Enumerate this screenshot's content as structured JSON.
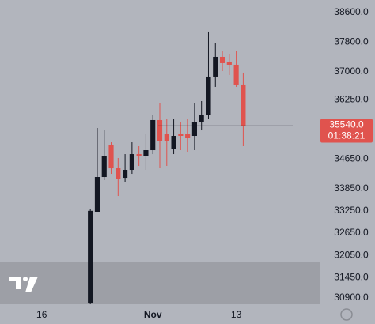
{
  "chart_data": {
    "type": "candlestick",
    "x": [
      0,
      1,
      2,
      3,
      4,
      5,
      6,
      7,
      8,
      9,
      10,
      11,
      12,
      13,
      14,
      15,
      16,
      17,
      18,
      19,
      20,
      21,
      22
    ],
    "open": [
      30750,
      33225,
      34163,
      35037,
      34397,
      34141,
      34355,
      34781,
      34718,
      34888,
      35699,
      35315,
      34931,
      35315,
      35315,
      35272,
      35635,
      35848,
      36872,
      37405,
      37277,
      37192,
      36659
    ],
    "high": [
      33300,
      35485,
      35421,
      35101,
      34675,
      34781,
      35101,
      34995,
      35315,
      35848,
      36168,
      35741,
      35741,
      35635,
      35741,
      36168,
      36211,
      38088,
      37768,
      37554,
      37490,
      37554,
      36979
    ],
    "low": [
      30730,
      33225,
      34078,
      34248,
      33651,
      34035,
      34248,
      34462,
      34355,
      34781,
      34419,
      34462,
      34781,
      34888,
      34845,
      34888,
      35421,
      35741,
      36595,
      37021,
      36915,
      36595,
      34995
    ],
    "close": [
      33250,
      34163,
      34718,
      34397,
      34120,
      34355,
      34781,
      34718,
      34888,
      35699,
      35144,
      35144,
      35272,
      35272,
      35208,
      35635,
      35848,
      36872,
      37405,
      37235,
      37192,
      36659,
      35540
    ],
    "up_color": "#131722",
    "down_color": "#e0534e",
    "xlim": [
      -13,
      33
    ],
    "xticks": [
      {
        "value": -7,
        "label": "16"
      },
      {
        "value": 9,
        "label": "Nov"
      },
      {
        "value": 21,
        "label": "13"
      }
    ],
    "ylim": [
      30730,
      38940
    ],
    "yticks": [
      {
        "value": 38600,
        "label": "38600.0"
      },
      {
        "value": 37800,
        "label": "37800.0"
      },
      {
        "value": 37000,
        "label": "37000.0"
      },
      {
        "value": 36250,
        "label": "36250.0"
      },
      {
        "value": 34650,
        "label": "34650.0"
      },
      {
        "value": 33850,
        "label": "33850.0"
      },
      {
        "value": 33250,
        "label": "33250.0"
      },
      {
        "value": 32650,
        "label": "32650.0"
      },
      {
        "value": 32050,
        "label": "32050.0"
      },
      {
        "value": 31450,
        "label": "31450.0"
      },
      {
        "value": 30900,
        "label": "30900.0"
      }
    ],
    "grid": false,
    "price_line": {
      "value": 35540,
      "label": "35540.0",
      "countdown": "01:38:21",
      "color": "#e0534e"
    }
  }
}
